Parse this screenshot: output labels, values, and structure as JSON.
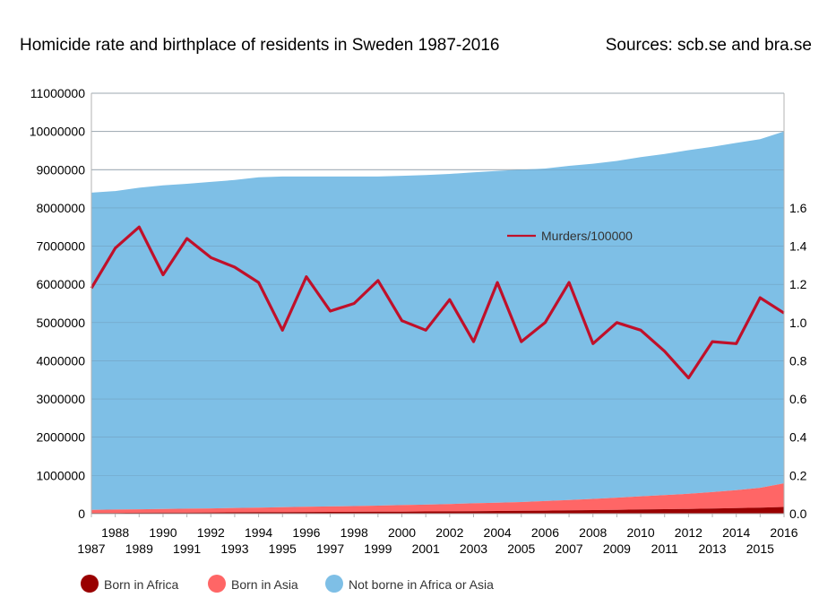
{
  "title": "Homicide rate and birthplace of residents in Sweden 1987-2016",
  "sources": "Sources: scb.se and bra.se",
  "colors": {
    "africa": "#990000",
    "asia": "#ff6666",
    "other": "#7ebfe6",
    "murders": "#c0102a",
    "grid": "#b3b3b3"
  },
  "chart_data": {
    "type": "area",
    "x": [
      1987,
      1988,
      1989,
      1990,
      1991,
      1992,
      1993,
      1994,
      1995,
      1996,
      1997,
      1998,
      1999,
      2000,
      2001,
      2002,
      2003,
      2004,
      2005,
      2006,
      2007,
      2008,
      2009,
      2010,
      2011,
      2012,
      2013,
      2014,
      2015,
      2016
    ],
    "x_labels_top": [
      "1988",
      "1990",
      "1992",
      "1994",
      "1996",
      "1998",
      "2000",
      "2002",
      "2004",
      "2006",
      "2008",
      "2010",
      "2012",
      "2014",
      "2016"
    ],
    "x_labels_bottom": [
      "1987",
      "1989",
      "1991",
      "1993",
      "1995",
      "1997",
      "1999",
      "2001",
      "2003",
      "2005",
      "2007",
      "2009",
      "2011",
      "2013",
      "2015"
    ],
    "left_axis": {
      "ylim": [
        0,
        11000000
      ],
      "ticks": [
        "0",
        "1000000",
        "2000000",
        "3000000",
        "4000000",
        "5000000",
        "6000000",
        "7000000",
        "8000000",
        "9000000",
        "10000000",
        "11000000"
      ]
    },
    "right_axis": {
      "ylim": [
        0,
        2.2
      ],
      "ticks": [
        "0.0",
        "0.2",
        "0.4",
        "0.6",
        "0.8",
        "1.0",
        "1.2",
        "1.4",
        "1.6"
      ]
    },
    "series": [
      {
        "name": "Born in Africa",
        "axis": "left",
        "kind": "stacked-area",
        "values": [
          20000,
          22000,
          25000,
          28000,
          31000,
          34000,
          37000,
          40000,
          43000,
          45000,
          47000,
          50000,
          52000,
          55000,
          58000,
          62000,
          66000,
          70000,
          75000,
          80000,
          86000,
          93000,
          100000,
          110000,
          118000,
          125000,
          135000,
          145000,
          158000,
          175000
        ]
      },
      {
        "name": "Born in Asia",
        "axis": "left",
        "kind": "stacked-area",
        "values": [
          80000,
          85000,
          90000,
          95000,
          100000,
          105000,
          112000,
          120000,
          128000,
          135000,
          143000,
          150000,
          160000,
          170000,
          180000,
          192000,
          205000,
          215000,
          230000,
          250000,
          270000,
          295000,
          320000,
          345000,
          370000,
          395000,
          430000,
          470000,
          520000,
          620000
        ]
      },
      {
        "name": "Not borne in Africa or Asia",
        "axis": "left",
        "kind": "stacked-area",
        "values": [
          8300000,
          8334000,
          8412000,
          8467000,
          8499000,
          8541000,
          8581000,
          8640000,
          8649000,
          8640000,
          8630000,
          8620000,
          8608000,
          8615000,
          8622000,
          8636000,
          8659000,
          8685000,
          8695000,
          8700000,
          8744000,
          8768000,
          8810000,
          8875000,
          8922000,
          8990000,
          9035000,
          9085000,
          9122000,
          9205000
        ]
      },
      {
        "name": "Murders/100000",
        "axis": "right",
        "kind": "line",
        "values": [
          1.18,
          1.39,
          1.5,
          1.25,
          1.44,
          1.34,
          1.29,
          1.21,
          0.96,
          1.24,
          1.06,
          1.1,
          1.22,
          1.01,
          0.96,
          1.12,
          0.9,
          1.21,
          0.9,
          1.0,
          1.21,
          0.89,
          1.0,
          0.96,
          0.85,
          0.71,
          0.9,
          0.89,
          1.13,
          1.05
        ]
      }
    ],
    "legend_placement": "bottom-left",
    "inline_label": "Murders/100000"
  }
}
